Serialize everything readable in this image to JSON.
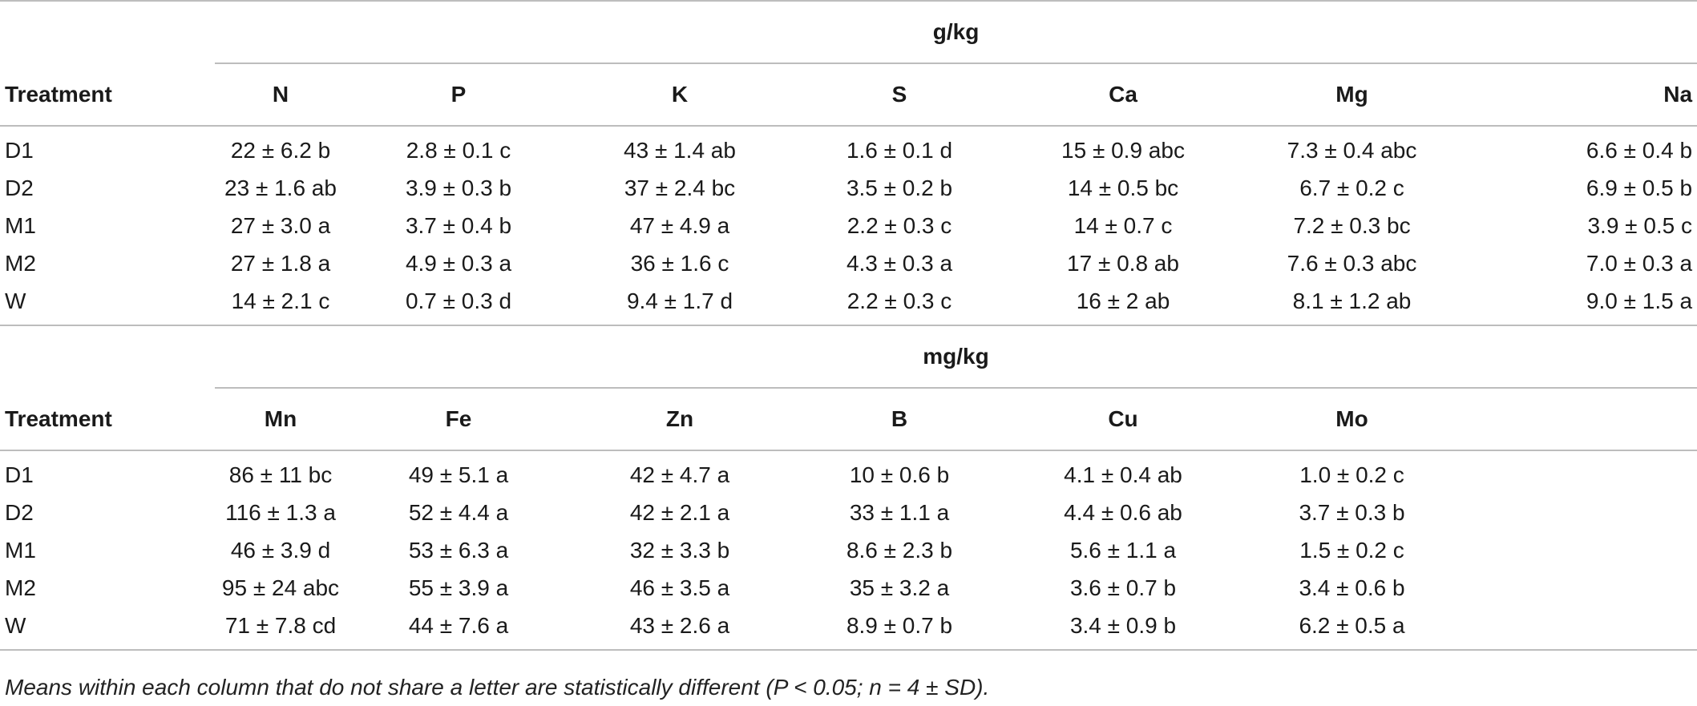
{
  "table1": {
    "unit_label": "g/kg",
    "treatment_label": "Treatment",
    "columns": [
      "N",
      "P",
      "K",
      "S",
      "Ca",
      "Mg",
      "Na"
    ],
    "rows": [
      {
        "treatment": "D1",
        "values": [
          "22 ± 6.2 b",
          "2.8 ± 0.1 c",
          "43 ± 1.4 ab",
          "1.6 ± 0.1 d",
          "15 ± 0.9 abc",
          "7.3 ± 0.4 abc",
          "6.6 ± 0.4 b"
        ]
      },
      {
        "treatment": "D2",
        "values": [
          "23 ± 1.6 ab",
          "3.9 ± 0.3 b",
          "37 ± 2.4 bc",
          "3.5 ± 0.2 b",
          "14 ± 0.5 bc",
          "6.7 ± 0.2 c",
          "6.9 ± 0.5 b"
        ]
      },
      {
        "treatment": "M1",
        "values": [
          "27 ± 3.0 a",
          "3.7 ± 0.4 b",
          "47 ± 4.9 a",
          "2.2 ± 0.3 c",
          "14 ± 0.7 c",
          "7.2 ± 0.3 bc",
          "3.9 ± 0.5 c"
        ]
      },
      {
        "treatment": "M2",
        "values": [
          "27 ± 1.8 a",
          "4.9 ± 0.3 a",
          "36 ± 1.6 c",
          "4.3 ± 0.3 a",
          "17 ± 0.8 ab",
          "7.6 ± 0.3 abc",
          "7.0 ± 0.3 a"
        ]
      },
      {
        "treatment": "W",
        "values": [
          "14 ± 2.1 c",
          "0.7 ± 0.3 d",
          "9.4 ± 1.7 d",
          "2.2 ± 0.3 c",
          "16 ± 2 ab",
          "8.1 ± 1.2 ab",
          "9.0 ± 1.5 a"
        ]
      }
    ]
  },
  "table2": {
    "unit_label": "mg/kg",
    "treatment_label": "Treatment",
    "columns": [
      "Mn",
      "Fe",
      "Zn",
      "B",
      "Cu",
      "Mo"
    ],
    "rows": [
      {
        "treatment": "D1",
        "values": [
          "86 ± 11 bc",
          "49 ± 5.1 a",
          "42 ± 4.7 a",
          "10 ± 0.6 b",
          "4.1 ± 0.4 ab",
          "1.0 ± 0.2 c"
        ]
      },
      {
        "treatment": "D2",
        "values": [
          "116 ± 1.3 a",
          "52 ± 4.4 a",
          "42 ± 2.1 a",
          "33 ± 1.1 a",
          "4.4 ± 0.6 ab",
          "3.7 ± 0.3 b"
        ]
      },
      {
        "treatment": "M1",
        "values": [
          "46 ± 3.9 d",
          "53 ± 6.3 a",
          "32 ± 3.3 b",
          "8.6 ± 2.3 b",
          "5.6 ± 1.1 a",
          "1.5 ± 0.2 c"
        ]
      },
      {
        "treatment": "M2",
        "values": [
          "95 ± 24 abc",
          "55 ± 3.9 a",
          "46 ± 3.5 a",
          "35 ± 3.2 a",
          "3.6 ± 0.7 b",
          "3.4 ± 0.6 b"
        ]
      },
      {
        "treatment": "W",
        "values": [
          "71 ± 7.8 cd",
          "44 ± 7.6 a",
          "43 ± 2.6 a",
          "8.9 ± 0.7 b",
          "3.4 ± 0.9 b",
          "6.2 ± 0.5 a"
        ]
      }
    ]
  },
  "footnote": "Means within each column that do not share a letter are statistically different (P < 0.05; n = 4 ± SD)."
}
